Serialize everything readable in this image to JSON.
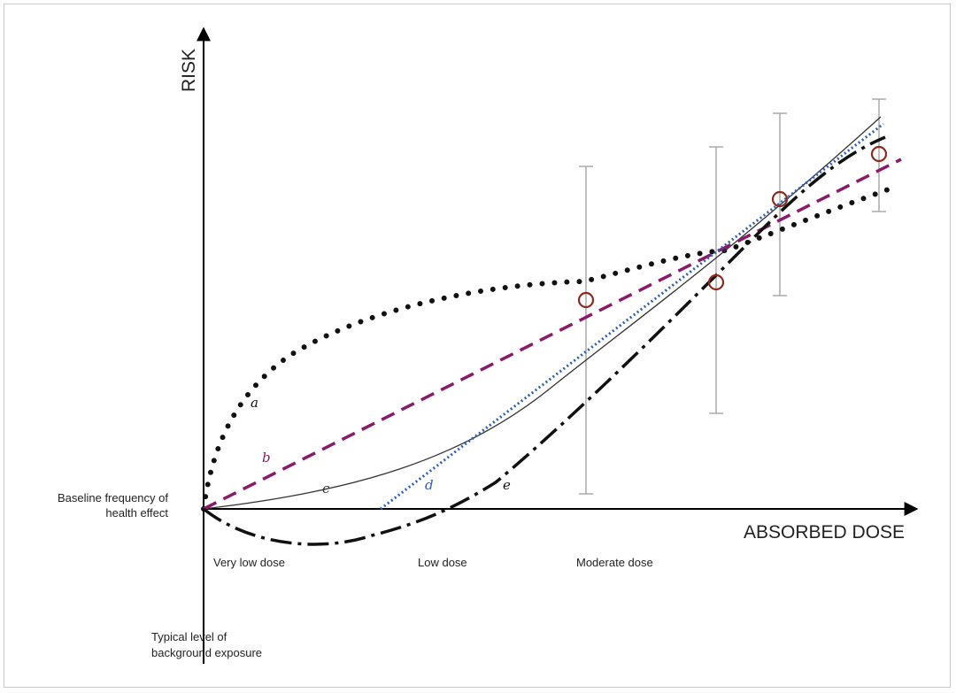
{
  "axes": {
    "y_label": "RISK",
    "x_label": "ABSORBED DOSE"
  },
  "annotations": {
    "baseline_line1": "Baseline frequency of",
    "baseline_line2": "health effect",
    "background_line1": "Typical level of",
    "background_line2": "background exposure"
  },
  "dose_regions": [
    "Very low dose",
    "Low dose",
    "Moderate dose"
  ],
  "curves": [
    {
      "id": "a",
      "label": "a",
      "color": "#111111",
      "style": "dotted"
    },
    {
      "id": "b",
      "label": "b",
      "color": "#8a1a6a",
      "style": "dashed"
    },
    {
      "id": "c",
      "label": "c",
      "color": "#333333",
      "style": "solid"
    },
    {
      "id": "d",
      "label": "d",
      "color": "#2f5fb5",
      "style": "dotted"
    },
    {
      "id": "e",
      "label": "e",
      "color": "#111111",
      "style": "dash-dot"
    }
  ],
  "colors": {
    "data_marker": "#8b2a1f",
    "error_bar": "#aaaaaa",
    "axis": "#000000"
  }
}
